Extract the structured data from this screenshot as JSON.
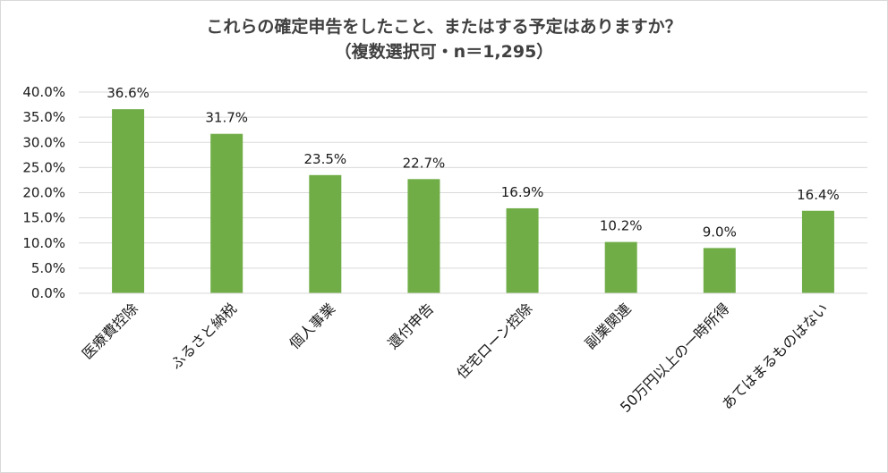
{
  "chart_data": {
    "type": "bar",
    "title": "これらの確定申告をしたこと、またはする予定はありますか？",
    "subtitle": "（複数選択可・n＝1,295）",
    "categories": [
      "医療費控除",
      "ふるさと納税",
      "個人事業",
      "還付申告",
      "住宅ローン控除",
      "副業関連",
      "50万円以上の一時所得",
      "あてはまるものはない"
    ],
    "values": [
      36.6,
      31.7,
      23.5,
      22.7,
      16.9,
      10.2,
      9.0,
      16.4
    ],
    "data_labels": [
      "36.6%",
      "31.7%",
      "23.5%",
      "22.7%",
      "16.9%",
      "10.2%",
      "9.0%",
      "16.4%"
    ],
    "y_ticks": [
      "0.0%",
      "5.0%",
      "10.0%",
      "15.0%",
      "20.0%",
      "25.0%",
      "30.0%",
      "35.0%",
      "40.0%"
    ],
    "ylim": [
      0,
      40
    ],
    "xlabel": "",
    "ylabel": "",
    "grid": true,
    "legend": "none",
    "bar_color": "#70ad47",
    "grid_color": "#d9d9d9"
  }
}
